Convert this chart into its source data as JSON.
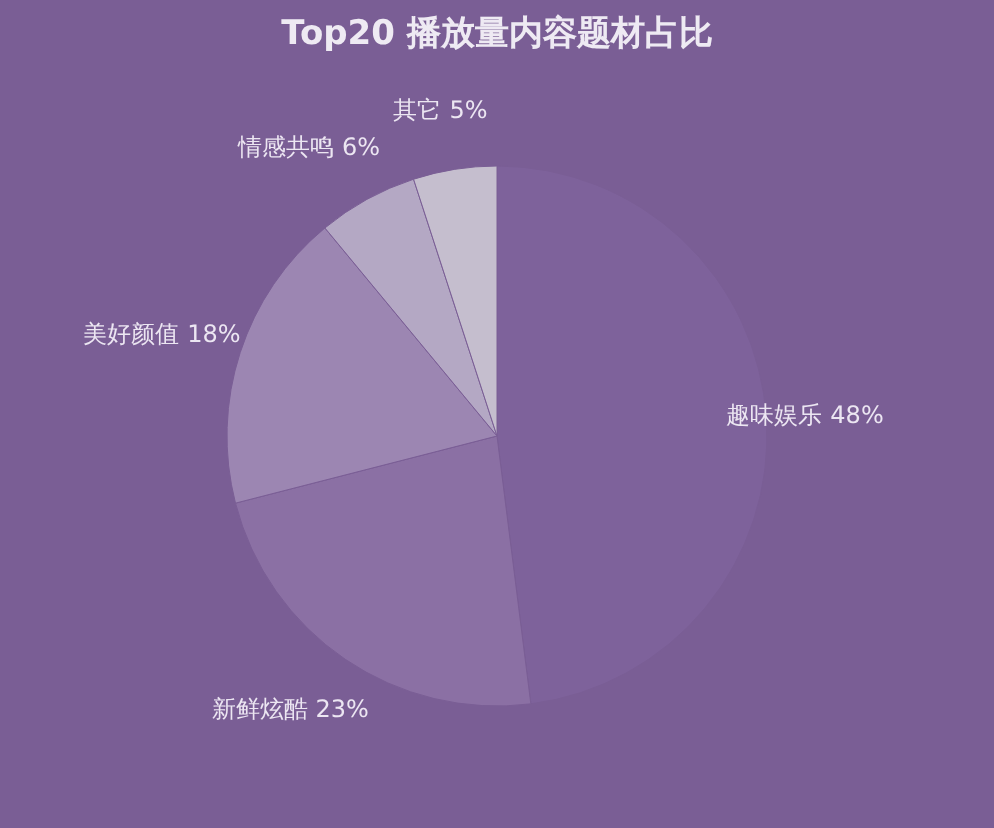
{
  "chart_data": {
    "type": "pie",
    "title": "Top20 播放量内容题材占比",
    "categories": [
      "趣味娱乐",
      "新鲜炫酷",
      "美好颜值",
      "情感共鸣",
      "其它"
    ],
    "values": [
      48,
      23,
      18,
      6,
      5
    ],
    "colors": [
      "#7e629b",
      "#8b70a4",
      "#9c86b2",
      "#b4a8c4",
      "#c5bece"
    ],
    "value_labels": [
      "48%",
      "23%",
      "18%",
      "6%",
      "5%"
    ],
    "legend": false
  }
}
